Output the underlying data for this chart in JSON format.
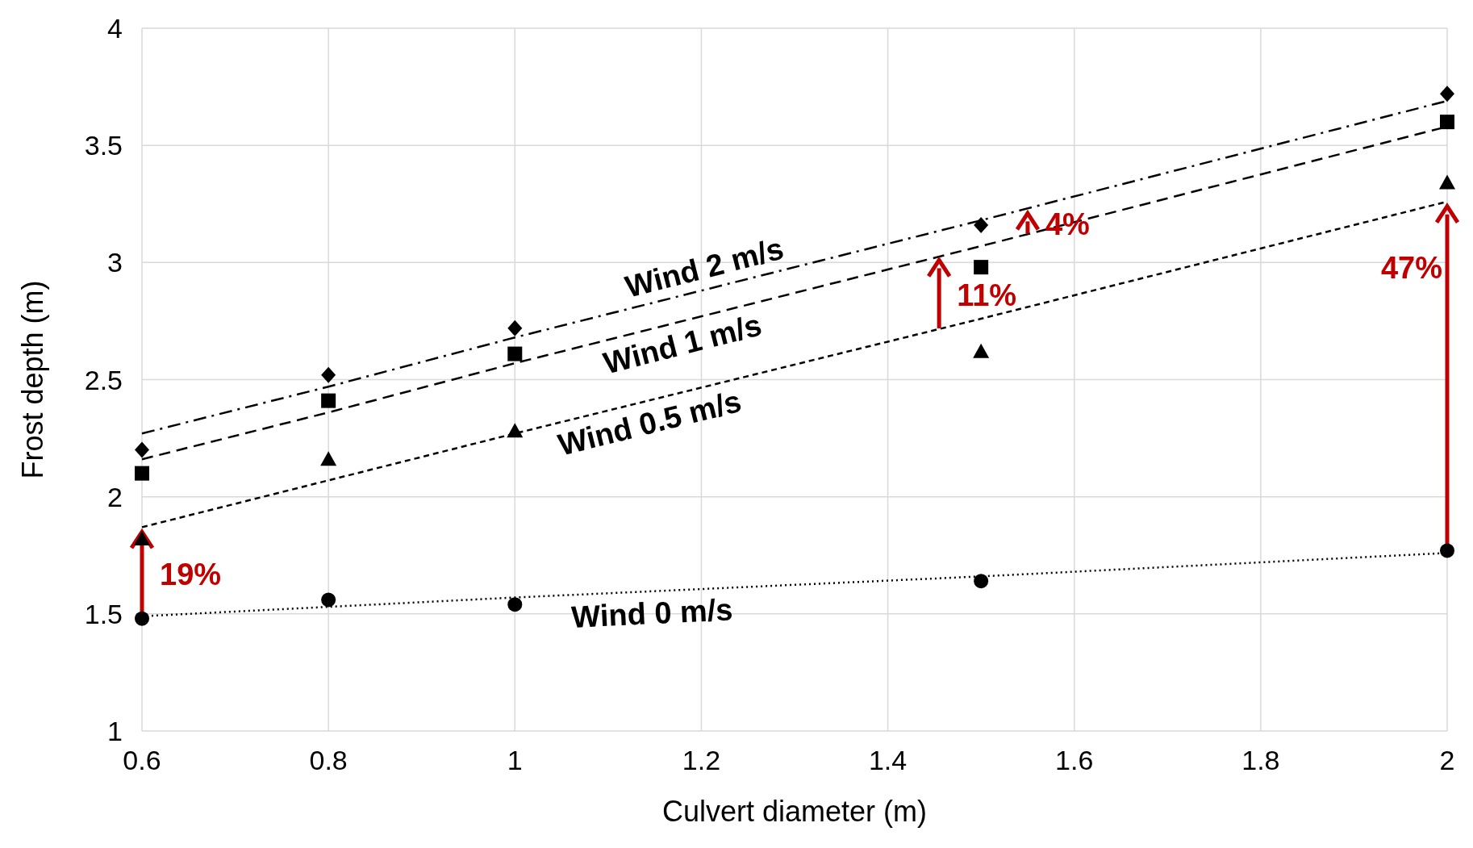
{
  "chart_data": {
    "type": "scatter",
    "xlabel": "Culvert diameter (m)",
    "ylabel": "Frost depth (m)",
    "x": [
      0.6,
      0.8,
      1,
      1.5,
      2
    ],
    "xlim": [
      0.6,
      2
    ],
    "xticks": [
      0.6,
      0.8,
      1,
      1.2,
      1.4,
      1.6,
      1.8,
      2
    ],
    "ylim": [
      1,
      4
    ],
    "yticks": [
      1,
      1.5,
      2,
      2.5,
      3,
      3.5,
      4
    ],
    "grid": true,
    "series": [
      {
        "marker": "circle",
        "color": "#000000",
        "values": [
          1.48,
          1.56,
          1.54,
          1.64,
          1.77
        ]
      },
      {
        "marker": "triangle",
        "color": "#000000",
        "values": [
          1.82,
          2.16,
          2.28,
          2.62,
          3.34
        ]
      },
      {
        "marker": "square",
        "color": "#000000",
        "values": [
          2.1,
          2.41,
          2.61,
          2.98,
          3.6
        ]
      },
      {
        "marker": "diamond",
        "color": "#000000",
        "values": [
          2.2,
          2.52,
          2.72,
          3.16,
          3.72
        ]
      },
      {
        "type": "line",
        "name": "Wind 0 m/s",
        "line_style": "dotted",
        "color": "#000000",
        "values": [
          1.49,
          1.53,
          1.57,
          1.66,
          1.76
        ]
      },
      {
        "type": "line",
        "name": "Wind 0.5 m/s",
        "line_style": "short-dash",
        "color": "#000000",
        "values": [
          1.87,
          2.07,
          2.27,
          2.76,
          3.26
        ]
      },
      {
        "type": "line",
        "name": "Wind 1 m/s",
        "line_style": "dashed",
        "color": "#000000",
        "values": [
          2.16,
          2.36,
          2.57,
          3.07,
          3.58
        ]
      },
      {
        "type": "line",
        "name": "Wind 2 m/s",
        "line_style": "dashdot",
        "color": "#000000",
        "values": [
          2.27,
          2.47,
          2.68,
          3.18,
          3.69
        ]
      }
    ],
    "annotations": [
      {
        "text": "19%",
        "x": 0.6,
        "y": 1.87
      },
      {
        "text": "11%",
        "x": 1.455,
        "y": 3.03
      },
      {
        "text": "4%",
        "x": 1.55,
        "y": 3.23
      },
      {
        "text": "47%",
        "x": 2,
        "y": 3.26
      }
    ]
  }
}
